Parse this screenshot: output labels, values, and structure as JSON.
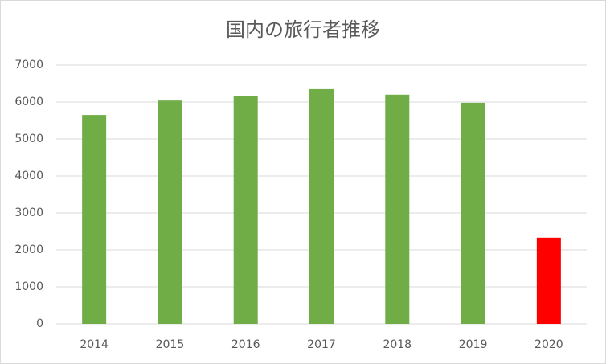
{
  "chart_data": {
    "type": "bar",
    "title": "国内の旅行者推移",
    "categories": [
      "2014",
      "2015",
      "2016",
      "2017",
      "2018",
      "2019",
      "2020"
    ],
    "values": [
      5650,
      6040,
      6170,
      6350,
      6200,
      5980,
      2330
    ],
    "colors": [
      "#70ad47",
      "#70ad47",
      "#70ad47",
      "#70ad47",
      "#70ad47",
      "#70ad47",
      "#ff0000"
    ],
    "ylim": [
      0,
      7000
    ],
    "yticks": [
      0,
      1000,
      2000,
      3000,
      4000,
      5000,
      6000,
      7000
    ],
    "grid": true
  }
}
